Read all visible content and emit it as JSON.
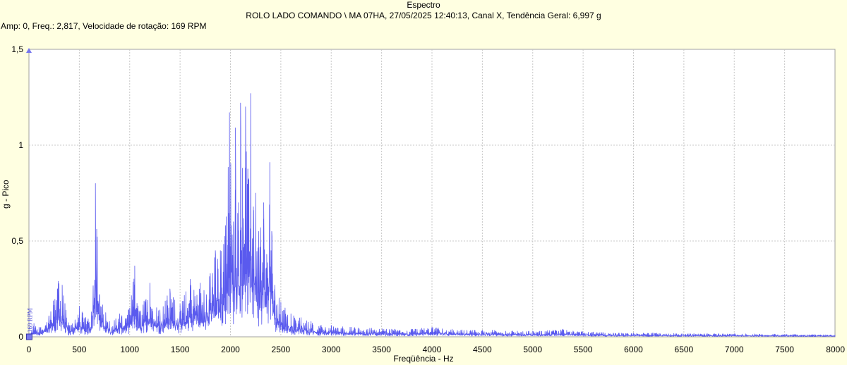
{
  "header": {
    "title": "Espectro",
    "subtitle": "ROLO LADO COMANDO \\ MA 07HA, 27/05/2025 12:40:13, Canal X, Tendência Geral: 6,997 g",
    "cursor_readout": "Amp: 0, Freq.: 2,817, Velocidade de rotação: 169 RPM"
  },
  "colors": {
    "background": "#ffffe1",
    "plot_background": "#ffffff",
    "grid": "#c8c8c8",
    "series": "#5a5aee",
    "cursor_marker": "#7777ee"
  },
  "chart_data": {
    "type": "line",
    "title": "Espectro",
    "xlabel": "Freqüência - Hz",
    "ylabel": "g - Pico",
    "xlim": [
      0,
      8000
    ],
    "ylim": [
      0,
      1.5
    ],
    "x_ticks": [
      0,
      500,
      1000,
      1500,
      2000,
      2500,
      3000,
      3500,
      4000,
      4500,
      5000,
      5500,
      6000,
      6500,
      7000,
      7500,
      8000
    ],
    "x_tick_labels": [
      "0",
      "500",
      "1000",
      "1500",
      "2000",
      "2500",
      "3000",
      "3500",
      "4000",
      "4500",
      "5000",
      "5500",
      "6000",
      "6500",
      "7000",
      "7500",
      "8000"
    ],
    "y_ticks": [
      0,
      0.5,
      1,
      1.5
    ],
    "y_tick_labels": [
      "0",
      "0,5",
      "1",
      "1,5"
    ],
    "grid": true,
    "legend": "none",
    "rpm_marker": {
      "label": "169 RPM",
      "x": 2.817
    },
    "series": [
      {
        "x": [
          0,
          50,
          100,
          200,
          290,
          330,
          400,
          500,
          560,
          620,
          660,
          700,
          800,
          900,
          1000,
          1050,
          1100,
          1200,
          1300,
          1400,
          1500,
          1600,
          1700,
          1800,
          1850,
          1900,
          1950,
          1990,
          2030,
          2050,
          2080,
          2100,
          2120,
          2150,
          2180,
          2200,
          2230,
          2250,
          2280,
          2300,
          2330,
          2360,
          2390,
          2410,
          2440,
          2500,
          2600,
          2700,
          2800,
          2900,
          3000,
          3200,
          3400,
          3600,
          3800,
          4000,
          4200,
          4400,
          4600,
          4800,
          5000,
          5200,
          5300,
          5400,
          5600,
          5800,
          6000,
          6200,
          6400,
          6600,
          6800,
          7000,
          7200,
          7400,
          7600,
          7800,
          8000
        ],
        "values": [
          0.01,
          0.07,
          0.05,
          0.11,
          0.29,
          0.27,
          0.06,
          0.16,
          0.1,
          0.13,
          0.8,
          0.22,
          0.08,
          0.12,
          0.15,
          0.37,
          0.13,
          0.28,
          0.14,
          0.25,
          0.17,
          0.3,
          0.28,
          0.33,
          0.45,
          0.45,
          0.58,
          1.17,
          0.6,
          1.09,
          0.7,
          1.22,
          0.88,
          1.2,
          0.79,
          1.27,
          0.66,
          0.75,
          0.55,
          0.57,
          0.7,
          0.43,
          0.91,
          0.55,
          0.27,
          0.18,
          0.12,
          0.1,
          0.08,
          0.06,
          0.06,
          0.05,
          0.045,
          0.04,
          0.04,
          0.05,
          0.04,
          0.035,
          0.035,
          0.03,
          0.03,
          0.035,
          0.04,
          0.03,
          0.025,
          0.02,
          0.02,
          0.02,
          0.018,
          0.017,
          0.016,
          0.016,
          0.015,
          0.014,
          0.013,
          0.012,
          0.01
        ]
      }
    ]
  }
}
